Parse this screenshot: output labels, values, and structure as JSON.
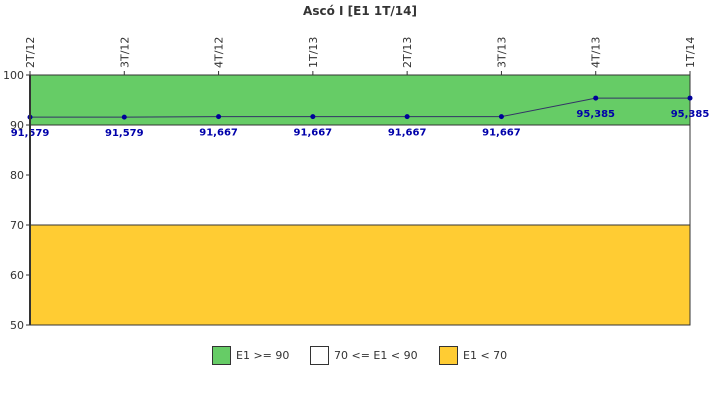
{
  "chart_data": {
    "type": "line",
    "title": "Ascó I [E1 1T/14]",
    "categories": [
      "2T/12",
      "3T/12",
      "4T/12",
      "1T/13",
      "2T/13",
      "3T/13",
      "4T/13",
      "1T/14"
    ],
    "series": [
      {
        "values": [
          91.579,
          91.579,
          91.667,
          91.667,
          91.667,
          91.667,
          95.385,
          95.385
        ],
        "labels": [
          "91,579",
          "91,579",
          "91,667",
          "91,667",
          "91,667",
          "91,667",
          "95,385",
          "95,385"
        ]
      }
    ],
    "ylim": [
      50,
      100
    ],
    "yticks": [
      50,
      60,
      70,
      80,
      90,
      100
    ],
    "bands": [
      {
        "from": 90,
        "to": 100,
        "color": "#66cc66",
        "label": "E1 >= 90"
      },
      {
        "from": 70,
        "to": 90,
        "color": "#ffffff",
        "label": "70 <= E1 < 90"
      },
      {
        "from": 50,
        "to": 70,
        "color": "#ffcc33",
        "label": "E1 < 70"
      }
    ],
    "line_color": "#333366",
    "marker_color": "#000099",
    "legend_position": "bottom"
  }
}
